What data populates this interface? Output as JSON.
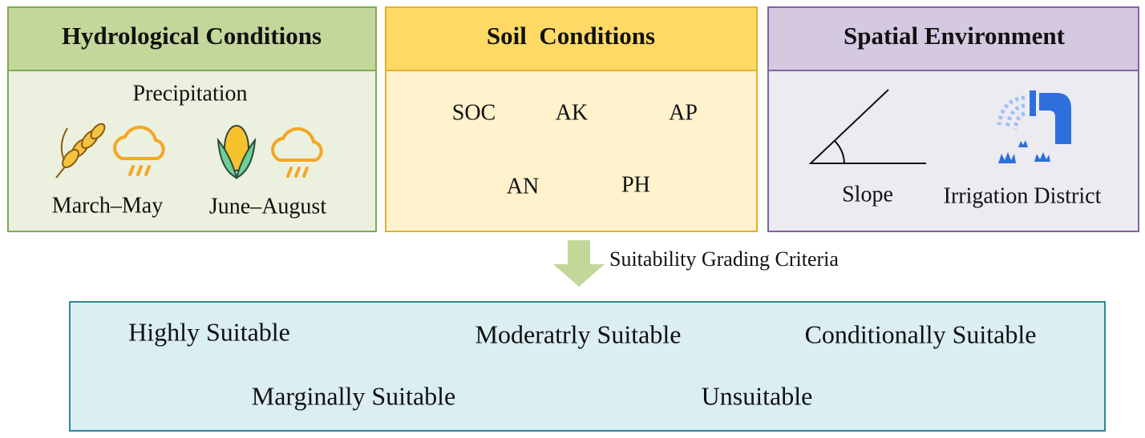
{
  "panels": [
    {
      "title": "Hydrological Conditions",
      "subtitle": "Precipitation",
      "items": [
        "March–May",
        "June–August"
      ]
    },
    {
      "title": "Soil  Conditions",
      "items": [
        "SOC",
        "AK",
        "AP",
        "AN",
        "PH"
      ]
    },
    {
      "title": "Spatial Environment",
      "items": [
        "Slope",
        "Irrigation District"
      ]
    }
  ],
  "arrow_label": "Suitability Grading Criteria",
  "grades": [
    "Highly Suitable",
    "Moderatrly Suitable",
    "Conditionally Suitable",
    "Marginally Suitable",
    "Unsuitable"
  ]
}
